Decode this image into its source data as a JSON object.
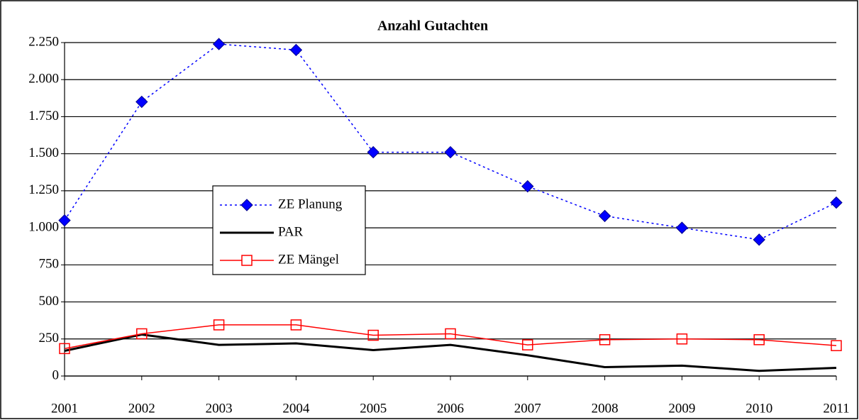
{
  "chart_data": {
    "type": "line",
    "title": "Anzahl Gutachten",
    "categories": [
      "2001",
      "2002",
      "2003",
      "2004",
      "2005",
      "2006",
      "2007",
      "2008",
      "2009",
      "2010",
      "2011"
    ],
    "series": [
      {
        "name": "ZE Planung",
        "color": "#0000ff",
        "marker": "diamond",
        "dash": "dotted",
        "values": [
          1050,
          1850,
          2240,
          2200,
          1510,
          1510,
          1280,
          1080,
          1000,
          920,
          1170
        ]
      },
      {
        "name": "PAR",
        "color": "#000000",
        "marker": "none",
        "dash": "solid",
        "values": [
          170,
          280,
          210,
          220,
          175,
          210,
          140,
          60,
          70,
          35,
          55
        ]
      },
      {
        "name": "ZE Mängel",
        "color": "#ff0000",
        "marker": "square",
        "dash": "solid",
        "values": [
          185,
          285,
          345,
          345,
          275,
          285,
          210,
          245,
          250,
          245,
          205
        ]
      }
    ],
    "ylim": [
      0,
      2250
    ],
    "yticks": [
      0,
      250,
      500,
      750,
      {
        "value": 1000,
        "label": "1.000"
      },
      {
        "value": 1250,
        "label": "1.250"
      },
      {
        "value": 1500,
        "label": "1.500"
      },
      {
        "value": 1750,
        "label": "1.750"
      },
      {
        "value": 2000,
        "label": "2.000"
      },
      {
        "value": 2250,
        "label": "2.250"
      }
    ],
    "grid": true
  }
}
